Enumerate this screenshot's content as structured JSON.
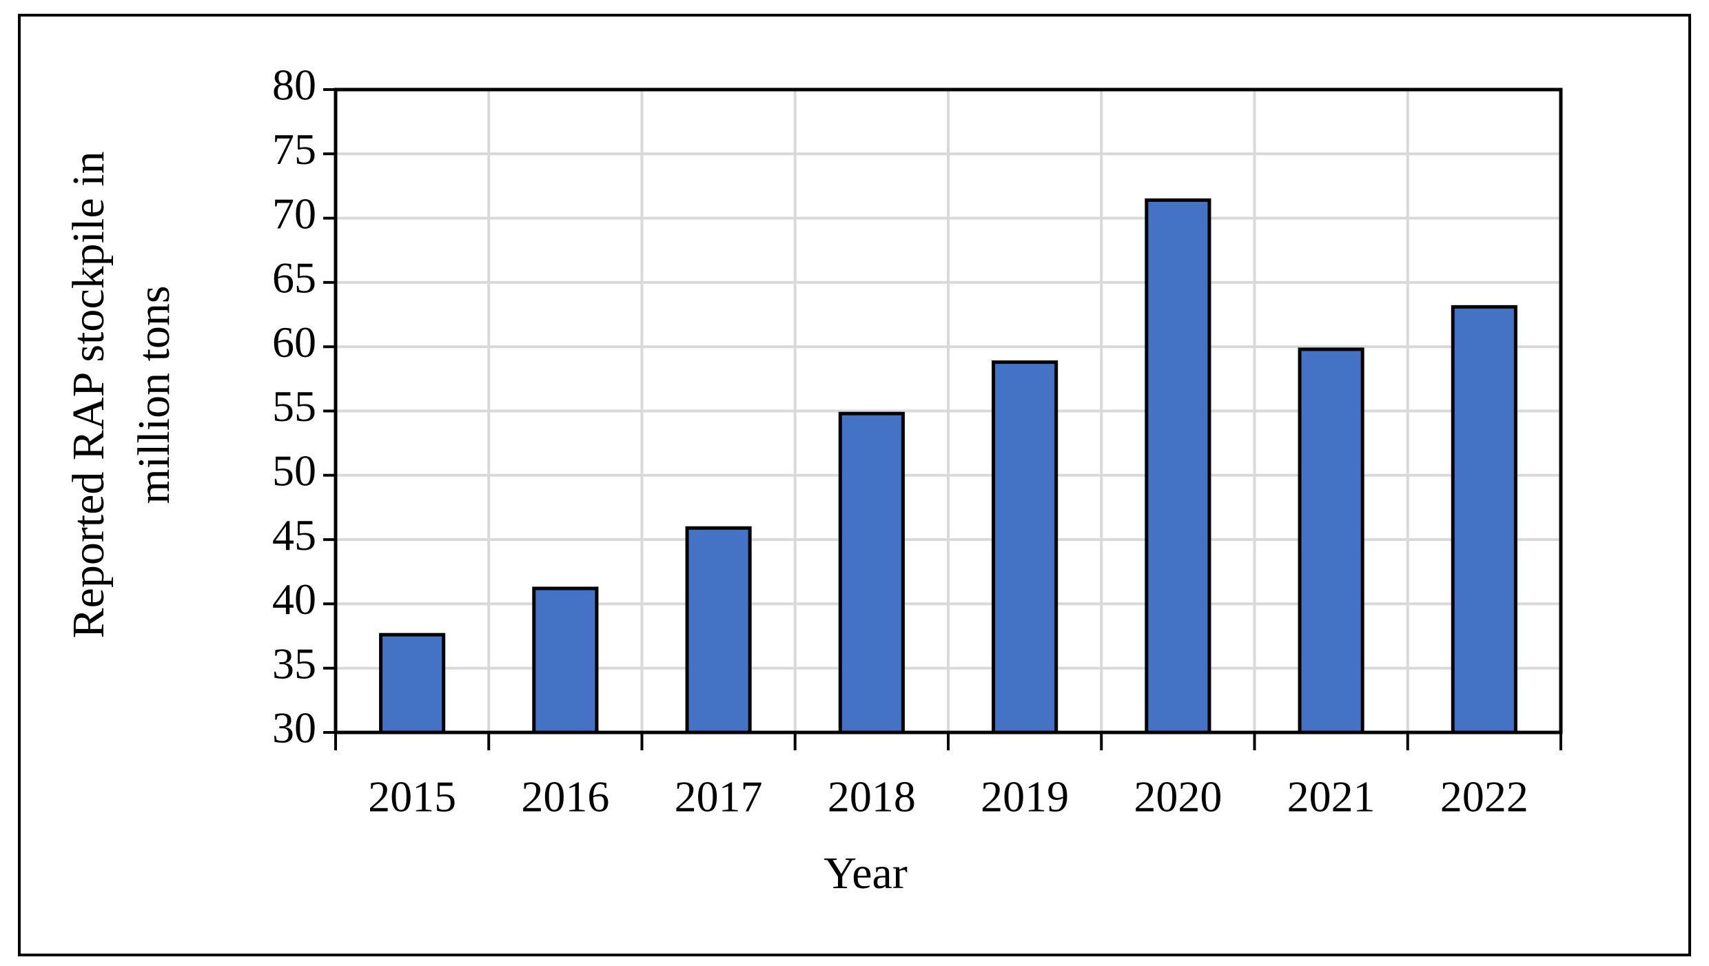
{
  "chart_data": {
    "type": "bar",
    "xlabel": "Year",
    "ylabel": [
      "Reported RAP stockpile in",
      "million tons"
    ],
    "categories": [
      "2015",
      "2016",
      "2017",
      "2018",
      "2019",
      "2020",
      "2021",
      "2022"
    ],
    "values": [
      37.6,
      41.2,
      45.9,
      54.8,
      58.8,
      71.4,
      59.8,
      63.1
    ],
    "color": "#4472c4",
    "ylim": [
      30,
      80
    ],
    "yticks": [
      30,
      35,
      40,
      45,
      50,
      55,
      60,
      65,
      70,
      75,
      80
    ],
    "grid": true
  }
}
